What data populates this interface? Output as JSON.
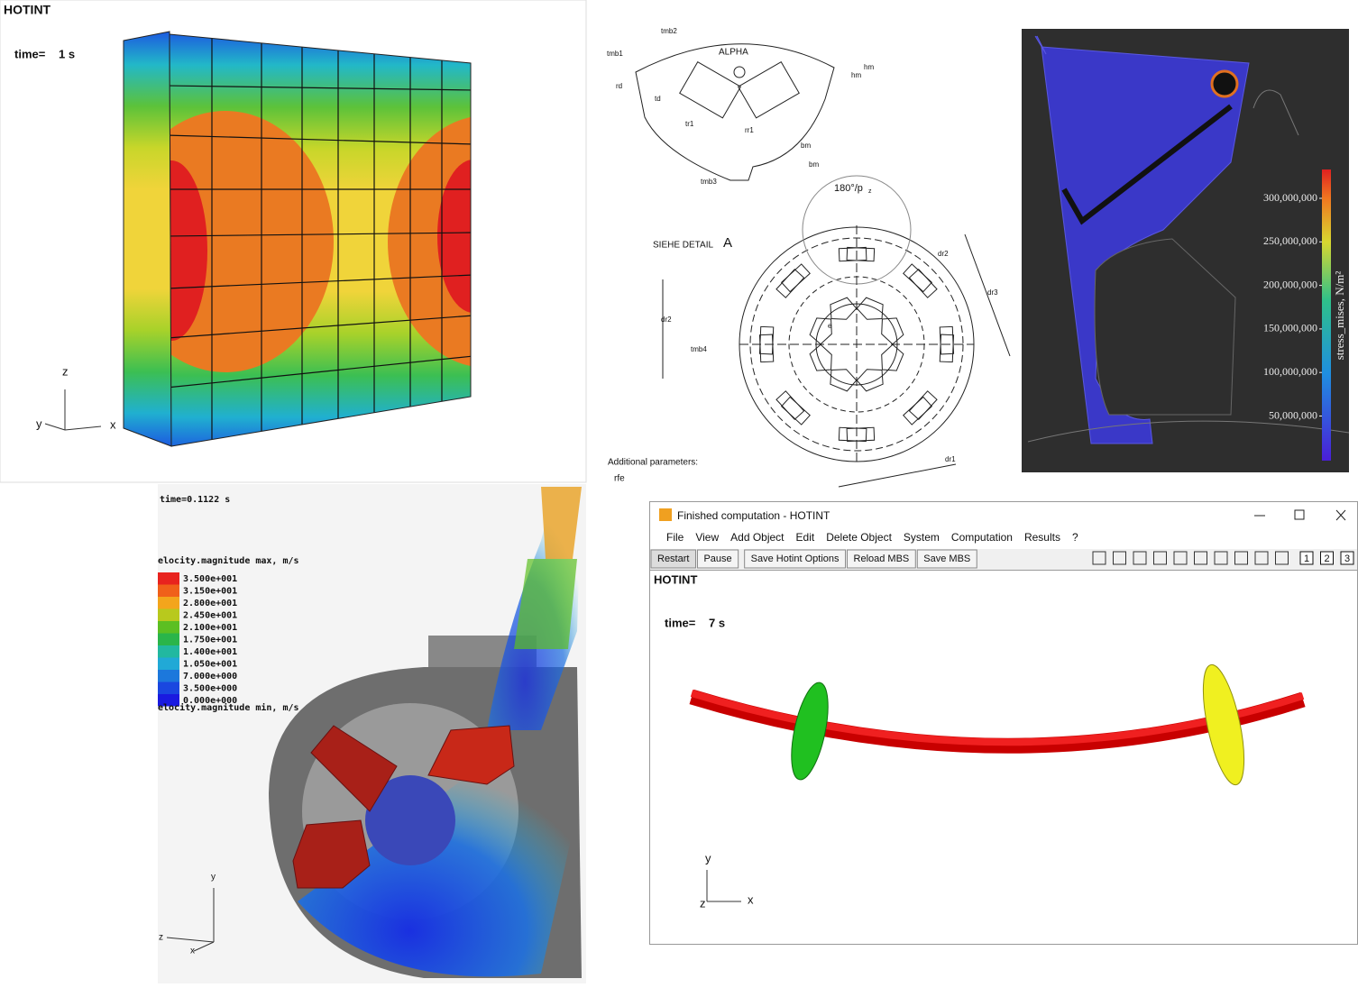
{
  "box_plot": {
    "title": "HOTINT",
    "time_label": "time=",
    "time_value": "1 s",
    "axes": [
      "z",
      "y",
      "x"
    ]
  },
  "drawing": {
    "alpha": "ALPHA",
    "angle": "180°/p",
    "angle_sub": "z",
    "detail": "SIEHE DETAIL",
    "detail_letter": "A",
    "dims": [
      "tmb1",
      "tmb2",
      "rd",
      "td",
      "tr1",
      "rr1",
      "bm",
      "bm",
      "hm",
      "hm",
      "tmb3",
      "dr2",
      "dr3",
      "dr2",
      "e",
      "tmb4",
      "dr1"
    ],
    "params_title": "Additional parameters:",
    "params": [
      "rfe"
    ]
  },
  "stress": {
    "colorbar_title": "stress_mises, N/m²",
    "ticks": [
      "300,000,000",
      "250,000,000",
      "200,000,000",
      "150,000,000",
      "100,000,000",
      "50,000,000"
    ]
  },
  "fluid": {
    "time": "time=0.1122 s",
    "legend_max": "elocity.magnitude max, m/s",
    "legend": [
      {
        "label": "3.500e+001",
        "color": "#e8231e"
      },
      {
        "label": "3.150e+001",
        "color": "#f0601a"
      },
      {
        "label": "2.800e+001",
        "color": "#f3a51c"
      },
      {
        "label": "2.450e+001",
        "color": "#b8c91d"
      },
      {
        "label": "2.100e+001",
        "color": "#5cbf22"
      },
      {
        "label": "1.750e+001",
        "color": "#2ab54a"
      },
      {
        "label": "1.400e+001",
        "color": "#22b8a0"
      },
      {
        "label": "1.050e+001",
        "color": "#21a9d6"
      },
      {
        "label": "7.000e+000",
        "color": "#1c78dc"
      },
      {
        "label": "3.500e+000",
        "color": "#1a47e0"
      },
      {
        "label": "0.000e+000",
        "color": "#1a1ae0"
      }
    ],
    "legend_min": "elocity.magnitude min, m/s",
    "axes": [
      "y",
      "z",
      "x"
    ]
  },
  "window": {
    "title": "Finished computation - HOTINT",
    "menu": [
      "File",
      "View",
      "Add Object",
      "Edit",
      "Delete Object",
      "System",
      "Computation",
      "Results",
      "?"
    ],
    "buttons": [
      "Restart",
      "Pause",
      "Save Hotint Options",
      "Reload MBS",
      "Save MBS"
    ],
    "view_buttons": [
      "1",
      "2",
      "3"
    ],
    "canvas_title": "HOTINT",
    "time_label": "time=",
    "time_value": "7 s",
    "axes": [
      "y",
      "z",
      "x"
    ]
  }
}
